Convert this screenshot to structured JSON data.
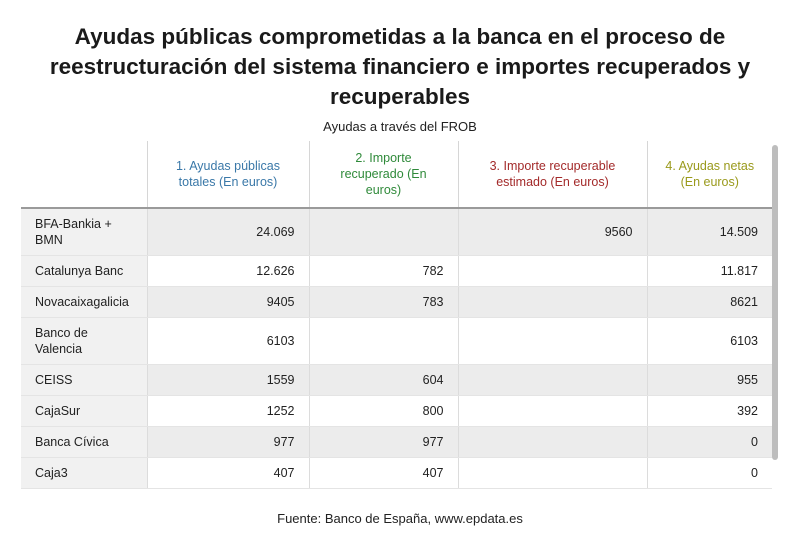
{
  "title": "Ayudas públicas comprometidas a la banca en el proceso de reestructuración del sistema financiero e importes recuperados y recuperables",
  "subtitle": "Ayudas a través del FROB",
  "source": "Fuente: Banco de España, www.epdata.es",
  "colors": {
    "col1": "#3a78a8",
    "col2": "#2f8a3a",
    "col3": "#a32a2a",
    "col4": "#9a9a1c"
  },
  "chart_data": {
    "type": "table",
    "title": "Ayudas públicas comprometidas a la banca en el proceso de reestructuración del sistema financiero e importes recuperados y recuperables",
    "subtitle": "Ayudas a través del FROB",
    "columns": [
      "",
      "1. Ayudas públicas totales (En euros)",
      "2. Importe recuperado (En euros)",
      "3. Importe recuperable estimado (En euros)",
      "4. Ayudas netas (En euros)"
    ],
    "rows": [
      [
        "BFA-Bankia + BMN",
        "24.069",
        "",
        "9560",
        "14.509"
      ],
      [
        "Catalunya Banc",
        "12.626",
        "782",
        "",
        "11.817"
      ],
      [
        "Novacaixagalicia",
        "9405",
        "783",
        "",
        "8621"
      ],
      [
        "Banco de Valencia",
        "6103",
        "",
        "",
        "6103"
      ],
      [
        "CEISS",
        "1559",
        "604",
        "",
        "955"
      ],
      [
        "CajaSur",
        "1252",
        "800",
        "",
        "392"
      ],
      [
        "Banca Cívica",
        "977",
        "977",
        "",
        "0"
      ],
      [
        "Caja3",
        "407",
        "407",
        "",
        "0"
      ]
    ],
    "source": "Fuente: Banco de España, www.epdata.es"
  }
}
